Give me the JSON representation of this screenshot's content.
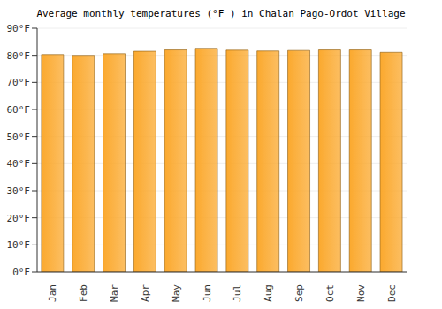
{
  "chart_data": {
    "type": "bar",
    "title": "Average monthly temperatures (°F ) in Chalan Pago-Ordot Village",
    "categories": [
      "Jan",
      "Feb",
      "Mar",
      "Apr",
      "May",
      "Jun",
      "Jul",
      "Aug",
      "Sep",
      "Oct",
      "Nov",
      "Dec"
    ],
    "values": [
      80.3,
      80.0,
      80.6,
      81.5,
      82.0,
      82.6,
      81.9,
      81.6,
      81.8,
      82.0,
      82.0,
      81.1
    ],
    "color": "#fba92e",
    "ylim": [
      0,
      90
    ],
    "yticks": [
      {
        "value": 0,
        "label": "0°F"
      },
      {
        "value": 10,
        "label": "10°F"
      },
      {
        "value": 20,
        "label": "20°F"
      },
      {
        "value": 30,
        "label": "30°F"
      },
      {
        "value": 40,
        "label": "40°F"
      },
      {
        "value": 50,
        "label": "50°F"
      },
      {
        "value": 60,
        "label": "60°F"
      },
      {
        "value": 70,
        "label": "70°F"
      },
      {
        "value": 80,
        "label": "80°F"
      },
      {
        "value": 90,
        "label": "90°F"
      }
    ],
    "grid": true
  }
}
